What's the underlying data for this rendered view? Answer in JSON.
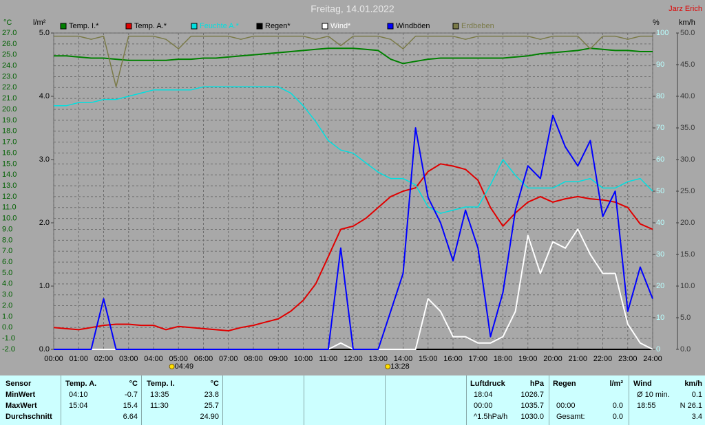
{
  "chart_data": {
    "type": "line",
    "title": "Freitag, 14.01.2022",
    "author": "Jarz Erich",
    "ylabel": "°C",
    "y2label": "l/m²",
    "y3label": "%",
    "y4label": "km/h",
    "xlim": [
      0,
      24
    ],
    "xticks": [
      {
        "value": 0,
        "label": "00:00"
      },
      {
        "value": 1,
        "label": "01:00"
      },
      {
        "value": 2,
        "label": "02:00"
      },
      {
        "value": 3,
        "label": "03:00"
      },
      {
        "value": 4,
        "label": "04:00"
      },
      {
        "value": 5,
        "label": "05:00"
      },
      {
        "value": 6,
        "label": "06:00"
      },
      {
        "value": 7,
        "label": "07:00"
      },
      {
        "value": 8,
        "label": "08:00"
      },
      {
        "value": 9,
        "label": "09:00"
      },
      {
        "value": 10,
        "label": "10:00"
      },
      {
        "value": 11,
        "label": "11:00"
      },
      {
        "value": 12,
        "label": "12:00"
      },
      {
        "value": 13,
        "label": "13:00"
      },
      {
        "value": 14,
        "label": "14:00"
      },
      {
        "value": 15,
        "label": "15:00"
      },
      {
        "value": 16,
        "label": "16:00"
      },
      {
        "value": 17,
        "label": "17:00"
      },
      {
        "value": 18,
        "label": "18:00"
      },
      {
        "value": 19,
        "label": "19:00"
      },
      {
        "value": 20,
        "label": "20:00"
      },
      {
        "value": 21,
        "label": "21:00"
      },
      {
        "value": 22,
        "label": "22:00"
      },
      {
        "value": 23,
        "label": "23:00"
      },
      {
        "value": 24,
        "label": "24:00"
      }
    ],
    "ylim": [
      -2,
      27
    ],
    "yticks": [
      {
        "value": -2,
        "label": "-2.0"
      },
      {
        "value": -1,
        "label": "-1.0"
      },
      {
        "value": 0,
        "label": "0.0"
      },
      {
        "value": 1,
        "label": "1.0"
      },
      {
        "value": 2,
        "label": "2.0"
      },
      {
        "value": 3,
        "label": "3.0"
      },
      {
        "value": 4,
        "label": "4.0"
      },
      {
        "value": 5,
        "label": "5.0"
      },
      {
        "value": 6,
        "label": "6.0"
      },
      {
        "value": 7,
        "label": "7.0"
      },
      {
        "value": 8,
        "label": "8.0"
      },
      {
        "value": 9,
        "label": "9.0"
      },
      {
        "value": 10,
        "label": "10.0"
      },
      {
        "value": 11,
        "label": "11.0"
      },
      {
        "value": 12,
        "label": "12.0"
      },
      {
        "value": 13,
        "label": "13.0"
      },
      {
        "value": 14,
        "label": "14.0"
      },
      {
        "value": 15,
        "label": "15.0"
      },
      {
        "value": 16,
        "label": "16.0"
      },
      {
        "value": 17,
        "label": "17.0"
      },
      {
        "value": 18,
        "label": "18.0"
      },
      {
        "value": 19,
        "label": "19.0"
      },
      {
        "value": 20,
        "label": "20.0"
      },
      {
        "value": 21,
        "label": "21.0"
      },
      {
        "value": 22,
        "label": "22.0"
      },
      {
        "value": 23,
        "label": "23.0"
      },
      {
        "value": 24,
        "label": "24.0"
      },
      {
        "value": 25,
        "label": "25.0"
      },
      {
        "value": 26,
        "label": "26.0"
      },
      {
        "value": 27,
        "label": "27.0"
      }
    ],
    "y2lim": [
      0,
      5
    ],
    "y2ticks": [
      {
        "value": 0,
        "label": "0.0"
      },
      {
        "value": 1,
        "label": "1.0"
      },
      {
        "value": 2,
        "label": "2.0"
      },
      {
        "value": 3,
        "label": "3.0"
      },
      {
        "value": 4,
        "label": "4.0"
      },
      {
        "value": 5,
        "label": "5.0"
      }
    ],
    "y3lim": [
      0,
      100
    ],
    "y3ticks": [
      0,
      10,
      20,
      30,
      40,
      50,
      60,
      70,
      80,
      90,
      100
    ],
    "y4lim": [
      0,
      50
    ],
    "y4ticks": [
      {
        "value": 0,
        "label": "0.0"
      },
      {
        "value": 5,
        "label": "5.0"
      },
      {
        "value": 10,
        "label": "10.0"
      },
      {
        "value": 15,
        "label": "15.0"
      },
      {
        "value": 20,
        "label": "20.0"
      },
      {
        "value": 25,
        "label": "25.0"
      },
      {
        "value": 30,
        "label": "30.0"
      },
      {
        "value": 35,
        "label": "35.0"
      },
      {
        "value": 40,
        "label": "40.0"
      },
      {
        "value": 45,
        "label": "45.0"
      },
      {
        "value": 50,
        "label": "50.0"
      }
    ],
    "grid": true,
    "x": [
      0,
      0.5,
      1,
      1.5,
      2,
      2.5,
      3,
      3.5,
      4,
      4.5,
      5,
      5.5,
      6,
      6.5,
      7,
      7.5,
      8,
      8.5,
      9,
      9.5,
      10,
      10.5,
      11,
      11.5,
      12,
      12.5,
      13,
      13.5,
      14,
      14.5,
      15,
      15.5,
      16,
      16.5,
      17,
      17.5,
      18,
      18.5,
      19,
      19.5,
      20,
      20.5,
      21,
      21.5,
      22,
      22.5,
      23,
      23.5,
      24
    ],
    "series": [
      {
        "name": "Temp. I.*",
        "color": "#008000",
        "axis": "y",
        "values": [
          24.9,
          24.9,
          24.8,
          24.7,
          24.7,
          24.6,
          24.5,
          24.5,
          24.5,
          24.5,
          24.6,
          24.6,
          24.7,
          24.7,
          24.8,
          24.9,
          25.0,
          25.1,
          25.2,
          25.3,
          25.4,
          25.5,
          25.6,
          25.6,
          25.6,
          25.5,
          25.4,
          24.6,
          24.2,
          24.4,
          24.6,
          24.7,
          24.7,
          24.7,
          24.7,
          24.7,
          24.7,
          24.8,
          24.9,
          25.1,
          25.2,
          25.3,
          25.4,
          25.6,
          25.5,
          25.4,
          25.4,
          25.3,
          25.3
        ]
      },
      {
        "name": "Temp. A.*",
        "color": "#e00000",
        "axis": "y",
        "values": [
          0.0,
          -0.1,
          -0.2,
          0.0,
          0.2,
          0.3,
          0.3,
          0.2,
          0.2,
          -0.2,
          0.1,
          0.0,
          -0.1,
          -0.2,
          -0.3,
          0.0,
          0.2,
          0.5,
          0.8,
          1.5,
          2.5,
          4.0,
          6.5,
          9.0,
          9.3,
          10.0,
          11.0,
          12.0,
          12.5,
          12.8,
          14.3,
          15.0,
          14.8,
          14.5,
          13.5,
          11.0,
          9.3,
          10.5,
          11.5,
          12.0,
          11.5,
          11.8,
          12.0,
          11.8,
          11.7,
          11.5,
          11.0,
          9.5,
          9.0
        ]
      },
      {
        "name": "Feuchte A.*",
        "color": "#00e0e0",
        "axis": "y3",
        "values": [
          77,
          77,
          78,
          78,
          79,
          79,
          80,
          81,
          82,
          82,
          82,
          82,
          83,
          83,
          83,
          83,
          83,
          83,
          83,
          81,
          77,
          72,
          66,
          63,
          62,
          59,
          56,
          54,
          54,
          52,
          45,
          43,
          44,
          45,
          45,
          52,
          60,
          55,
          51,
          51,
          51,
          53,
          53,
          54,
          51,
          51,
          53,
          54,
          50
        ]
      },
      {
        "name": "Regen*",
        "color": "#000000",
        "axis": "y2",
        "values": [
          0,
          0,
          0,
          0,
          0,
          0,
          0,
          0,
          0,
          0,
          0,
          0,
          0,
          0,
          0,
          0,
          0,
          0,
          0,
          0,
          0,
          0,
          0,
          0,
          0,
          0,
          0,
          0,
          0,
          0,
          0,
          0,
          0,
          0,
          0,
          0,
          0,
          0,
          0,
          0,
          0,
          0,
          0,
          0,
          0,
          0,
          0,
          0,
          0
        ]
      },
      {
        "name": "Wind*",
        "color": "#ffffff",
        "axis": "y4",
        "values": [
          0,
          0,
          0,
          0,
          0,
          0,
          0,
          0,
          0,
          0,
          0,
          0,
          0,
          0,
          0,
          0,
          0,
          0,
          0,
          0,
          0,
          0,
          0,
          1,
          0,
          0,
          0,
          0,
          0,
          0,
          8,
          6,
          2,
          2,
          1,
          1,
          2,
          6,
          18,
          12,
          17,
          16,
          19,
          15,
          12,
          12,
          4,
          1,
          0
        ]
      },
      {
        "name": "Windböen",
        "color": "#0000ff",
        "axis": "y4",
        "values": [
          0,
          0,
          0,
          0,
          8,
          0,
          0,
          0,
          0,
          0,
          0,
          0,
          0,
          0,
          0,
          0,
          0,
          0,
          0,
          0,
          0,
          0,
          0,
          16,
          0,
          0,
          0,
          6,
          12,
          35,
          24,
          20,
          14,
          22,
          16,
          2,
          9,
          22,
          29,
          27,
          37,
          32,
          29,
          33,
          21,
          25,
          6,
          13,
          8
        ]
      },
      {
        "name": "Erdbeben",
        "color": "#7a7a48",
        "axis": "y3",
        "values": [
          99,
          99,
          99,
          98,
          99,
          83,
          99,
          99,
          99,
          98,
          95,
          99,
          99,
          99,
          99,
          98,
          99,
          99,
          99,
          99,
          99,
          98,
          99,
          96,
          99,
          99,
          99,
          98,
          95,
          99,
          99,
          99,
          99,
          98,
          99,
          99,
          99,
          99,
          99,
          98,
          99,
          99,
          99,
          95,
          99,
          99,
          98,
          99,
          99
        ]
      }
    ],
    "annotations": [
      "04:49",
      "13:28"
    ]
  },
  "table": {
    "rows": [
      [
        "Sensor",
        "Temp. A.",
        "°C",
        "Temp. I.",
        "°C",
        "Luftdruck",
        "hPa",
        "Regen",
        "l/m²",
        "Wind",
        "km/h"
      ],
      [
        "MinWert",
        "04:10",
        "-0.7",
        "13:35",
        "23.8",
        "18:04",
        "1026.7",
        null,
        null,
        "Ø 10 min.",
        "0.1"
      ],
      [
        "MaxWert",
        "15:04",
        "15.4",
        "11:30",
        "25.7",
        "00:00",
        "1035.7",
        "00:00",
        "0.0",
        "18:55",
        "N 26.1"
      ],
      [
        "Durchschnitt",
        null,
        "6.64",
        null,
        "24.90",
        "^1.5hPa/h",
        "1030.0",
        "Gesamt:",
        "0.0",
        null,
        "3.4"
      ]
    ]
  }
}
